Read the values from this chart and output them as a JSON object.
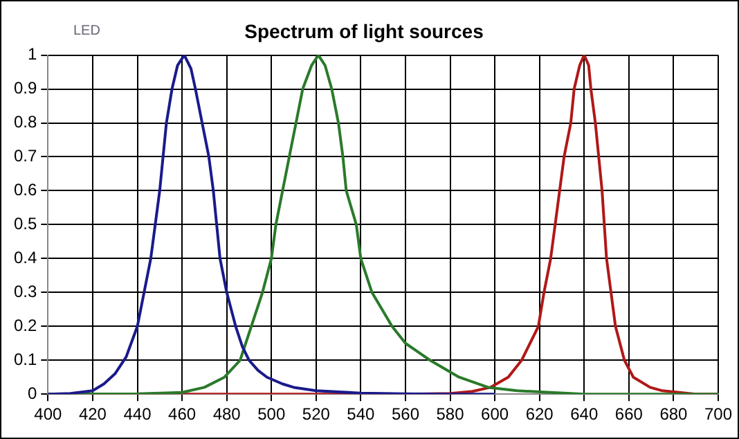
{
  "chart_data": {
    "type": "line",
    "title": "Spectrum of light sources",
    "annotations": [
      "LED"
    ],
    "xlim": [
      400,
      700
    ],
    "xticks": [
      400,
      420,
      440,
      460,
      480,
      500,
      520,
      540,
      560,
      580,
      600,
      620,
      640,
      660,
      680,
      700
    ],
    "ylim": [
      0,
      1
    ],
    "yticks": [
      0,
      0.1,
      0.2,
      0.3,
      0.4,
      0.5,
      0.6,
      0.7,
      0.8,
      0.9,
      1
    ],
    "grid": true,
    "legend": false,
    "marker": "none",
    "line_style": "solid",
    "series": [
      {
        "color": "#1a1a8c",
        "x": [
          400,
          410,
          420,
          425,
          430,
          435,
          440,
          443,
          446,
          450,
          453,
          455.5,
          458,
          461,
          464,
          466,
          469,
          472,
          474,
          477,
          480,
          484,
          487,
          490,
          494,
          498,
          505,
          510,
          520,
          540,
          560,
          580,
          600
        ],
        "values": [
          0,
          0.002,
          0.01,
          0.03,
          0.06,
          0.11,
          0.2,
          0.3,
          0.4,
          0.6,
          0.8,
          0.9,
          0.97,
          1,
          0.96,
          0.9,
          0.8,
          0.7,
          0.6,
          0.4,
          0.3,
          0.2,
          0.14,
          0.1,
          0.07,
          0.05,
          0.03,
          0.02,
          0.01,
          0.003,
          0.001,
          0,
          0
        ]
      },
      {
        "color": "#2a7a2a",
        "x": [
          400,
          440,
          460,
          470,
          479,
          486,
          491,
          496,
          500,
          502,
          505,
          508,
          511,
          514,
          518,
          521,
          524,
          527,
          530,
          532,
          533.5,
          538,
          540,
          545,
          554,
          560,
          571,
          584,
          597,
          610,
          640,
          700
        ],
        "values": [
          0,
          0.001,
          0.005,
          0.02,
          0.05,
          0.1,
          0.2,
          0.3,
          0.4,
          0.5,
          0.6,
          0.7,
          0.8,
          0.9,
          0.97,
          1,
          0.97,
          0.9,
          0.8,
          0.7,
          0.6,
          0.5,
          0.4,
          0.3,
          0.2,
          0.15,
          0.1,
          0.05,
          0.02,
          0.01,
          0,
          0
        ]
      },
      {
        "color": "#b01818",
        "x": [
          400,
          560,
          580,
          590,
          598,
          606,
          612,
          619.5,
          622,
          625,
          627,
          629,
          631,
          634,
          635.5,
          638,
          640,
          642,
          643,
          645,
          648,
          650,
          654,
          658,
          662,
          669.5,
          675,
          690,
          700
        ],
        "values": [
          0,
          0,
          0.002,
          0.008,
          0.02,
          0.05,
          0.1,
          0.2,
          0.3,
          0.4,
          0.5,
          0.6,
          0.7,
          0.8,
          0.9,
          0.97,
          1,
          0.97,
          0.9,
          0.8,
          0.6,
          0.4,
          0.2,
          0.1,
          0.05,
          0.02,
          0.01,
          0,
          0
        ]
      }
    ]
  }
}
